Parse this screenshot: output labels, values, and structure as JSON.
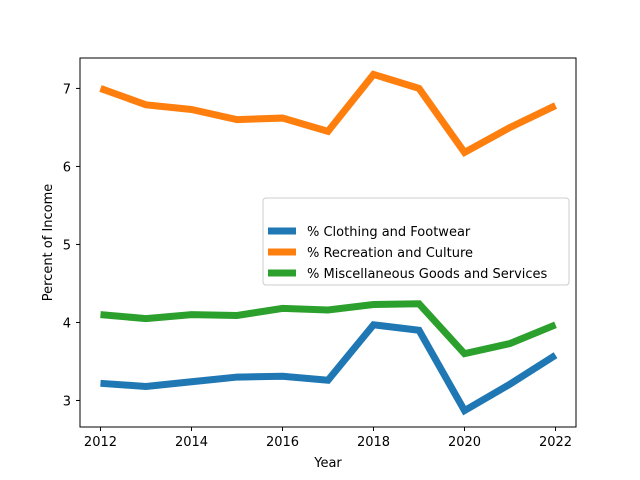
{
  "chart_data": {
    "type": "line",
    "title": "",
    "xlabel": "Year",
    "ylabel": "Percent of Income",
    "x": [
      2012,
      2013,
      2014,
      2015,
      2016,
      2017,
      2018,
      2019,
      2020,
      2021,
      2022
    ],
    "xlim": [
      2011.55,
      2022.45
    ],
    "ylim": [
      2.66,
      7.39
    ],
    "x_ticks": [
      2012,
      2014,
      2016,
      2018,
      2020,
      2022
    ],
    "y_ticks": [
      3,
      4,
      5,
      6,
      7
    ],
    "grid": false,
    "legend_position": "center-right",
    "series": [
      {
        "name": "% Clothing and Footwear",
        "color": "#1f77b4",
        "values": [
          3.22,
          3.18,
          3.24,
          3.3,
          3.31,
          3.26,
          3.97,
          3.9,
          2.87,
          3.21,
          3.58
        ]
      },
      {
        "name": "% Recreation and Culture",
        "color": "#ff7f0e",
        "values": [
          7.0,
          6.79,
          6.73,
          6.6,
          6.62,
          6.45,
          7.18,
          7.0,
          6.18,
          6.5,
          6.78
        ]
      },
      {
        "name": "% Miscellaneous Goods and Services",
        "color": "#2ca02c",
        "values": [
          4.1,
          4.05,
          4.1,
          4.09,
          4.18,
          4.16,
          4.23,
          4.24,
          3.6,
          3.73,
          3.97
        ]
      }
    ]
  }
}
